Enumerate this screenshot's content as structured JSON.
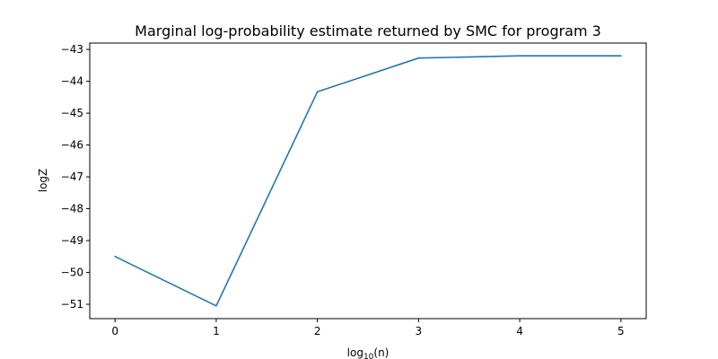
{
  "chart_data": {
    "type": "line",
    "title": "Marginal log-probability estimate returned by SMC for program 3",
    "xlabel_main": "log",
    "xlabel_sub": "10",
    "xlabel_arg": "(n)",
    "ylabel": "logZ",
    "x": [
      0,
      1,
      2,
      3,
      4,
      5
    ],
    "series": [
      {
        "values": [
          -49.5,
          -51.05,
          -44.33,
          -43.27,
          -43.2,
          -43.2
        ],
        "color": "#1f77b4"
      }
    ],
    "xlim": [
      -0.25,
      5.25
    ],
    "ylim": [
      -51.45,
      -42.8
    ],
    "xticks": [
      0,
      1,
      2,
      3,
      4,
      5
    ],
    "xtick_labels": [
      "0",
      "1",
      "2",
      "3",
      "4",
      "5"
    ],
    "yticks": [
      -51,
      -50,
      -49,
      -48,
      -47,
      -46,
      -45,
      -44,
      -43
    ],
    "ytick_labels": [
      "−51",
      "−50",
      "−49",
      "−48",
      "−47",
      "−46",
      "−45",
      "−44",
      "−43"
    ],
    "grid": false,
    "legend": "none"
  }
}
